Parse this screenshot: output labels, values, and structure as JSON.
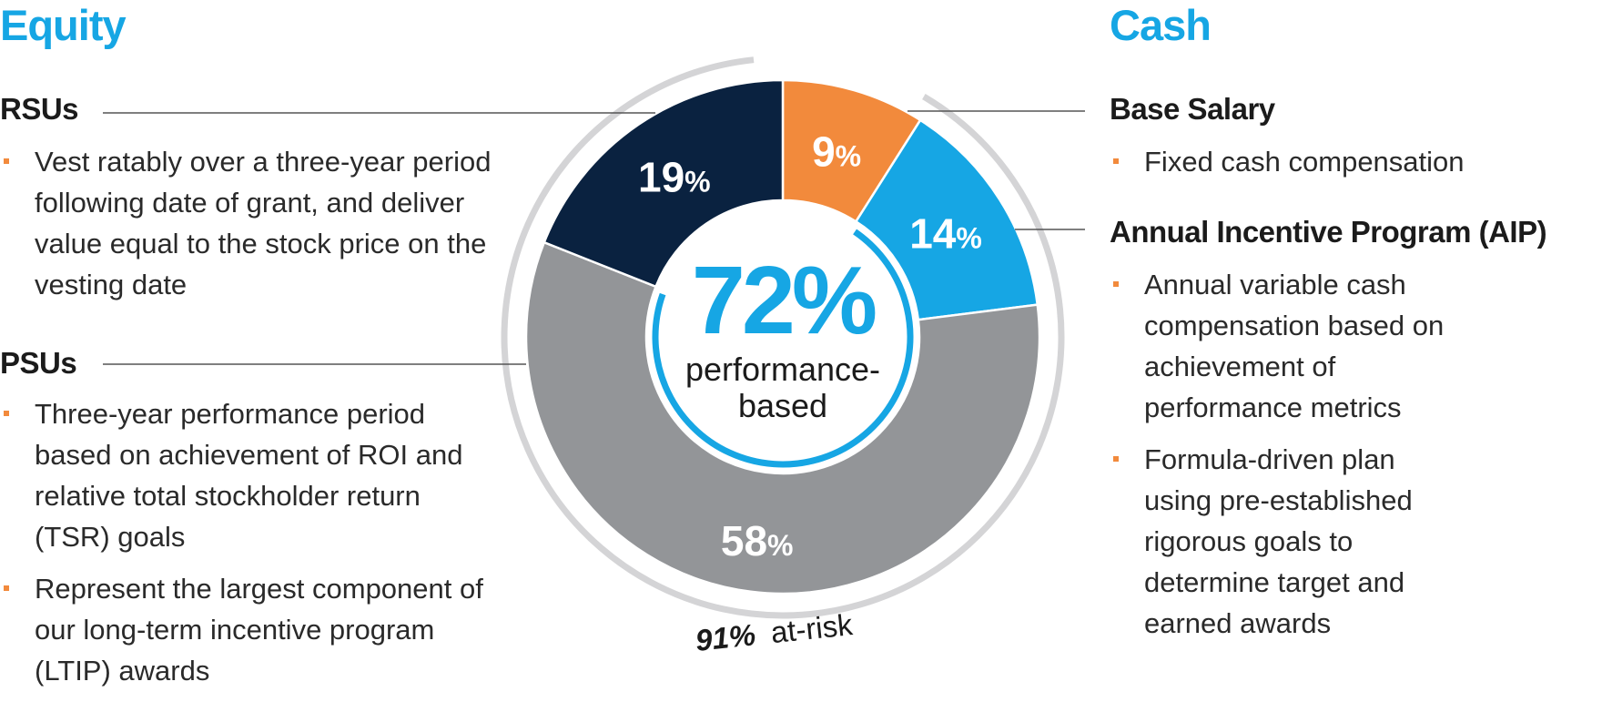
{
  "equity": {
    "title": "Equity",
    "rsus": {
      "title": "RSUs",
      "bullets": [
        "Vest ratably over a three-year period following date of grant, and deliver value equal to the stock price on the vesting date"
      ]
    },
    "psus": {
      "title": "PSUs",
      "bullets": [
        "Three-year performance period based on achievement of ROI and relative total stockholder return (TSR) goals",
        "Represent the largest component of our long-term incentive program (LTIP) awards"
      ]
    }
  },
  "cash": {
    "title": "Cash",
    "base_salary": {
      "title": "Base Salary",
      "bullets": [
        "Fixed cash compensation"
      ]
    },
    "aip": {
      "title": "Annual Incentive Program (AIP)",
      "bullets": [
        "Annual variable cash compensation based on achievement of performance metrics",
        "Formula-driven plan using pre-established rigorous goals to determine target and earned awards"
      ]
    }
  },
  "chart_data": {
    "type": "pie",
    "variant": "donut",
    "title": "",
    "slices": [
      {
        "label": "Base Salary",
        "value": 9,
        "display": "9",
        "color": "#f28a3c"
      },
      {
        "label": "Annual Incentive Program (AIP)",
        "value": 14,
        "display": "14",
        "color": "#16a6e4"
      },
      {
        "label": "PSUs",
        "value": 58,
        "display": "58",
        "color": "#939598"
      },
      {
        "label": "RSUs",
        "value": 19,
        "display": "19",
        "color": "#0a2240"
      }
    ],
    "percent_sign": "%",
    "center": {
      "value": "72%",
      "label_line1": "performance-",
      "label_line2": "based",
      "color": "#16a6e4"
    },
    "at_risk": {
      "value": "91%",
      "label": "at-risk",
      "arc_color": "#d4d4d6"
    },
    "leader_color": "#555555"
  }
}
